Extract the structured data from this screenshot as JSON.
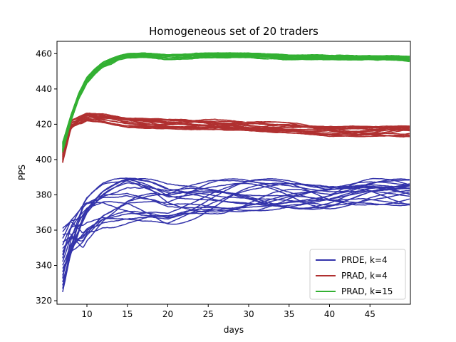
{
  "chart_data": {
    "type": "line",
    "title": "Homogeneous set of 20 traders",
    "xlabel": "days",
    "ylabel": "PPS",
    "xlim": [
      6.3,
      50
    ],
    "ylim": [
      318,
      467
    ],
    "x_ticks": [
      10,
      15,
      20,
      25,
      30,
      35,
      40,
      45
    ],
    "y_ticks": [
      320,
      340,
      360,
      380,
      400,
      420,
      440,
      460
    ],
    "grid": false,
    "legend_position": "lower-right",
    "series": [
      {
        "name": "PRDE, k=4",
        "color": "#3333aa",
        "count": 20,
        "start_range": [
          324,
          362
        ],
        "x": [
          7,
          8,
          10,
          12,
          15,
          18,
          20,
          25,
          30,
          35,
          40,
          45,
          50
        ],
        "band_center": [
          343,
          356,
          368,
          374,
          377,
          376,
          374,
          378,
          380,
          381,
          380,
          382,
          381
        ],
        "band_halfwidth": [
          18,
          17,
          15,
          14,
          14,
          13,
          13,
          12,
          10,
          9,
          8,
          8,
          8
        ]
      },
      {
        "name": "PRAD, k=4",
        "color": "#b03030",
        "count": 20,
        "start_range": [
          398,
          406
        ],
        "x": [
          7,
          8,
          10,
          12,
          15,
          20,
          25,
          30,
          35,
          40,
          45,
          50
        ],
        "band_center": [
          402,
          419,
          424,
          423,
          421,
          420,
          420,
          419,
          418,
          416,
          416,
          416
        ],
        "band_halfwidth": [
          2,
          4,
          3,
          3,
          3,
          3,
          3,
          3,
          3,
          3,
          3,
          4
        ]
      },
      {
        "name": "PRAD, k=15",
        "color": "#33b033",
        "count": 20,
        "start_range": [
          404,
          410
        ],
        "x": [
          7,
          8,
          9,
          10,
          11,
          12,
          13,
          14,
          15,
          17,
          20,
          25,
          30,
          35,
          40,
          45,
          50
        ],
        "band_center": [
          407,
          423,
          436,
          445,
          450,
          454,
          456,
          458,
          459,
          459,
          458,
          459,
          459,
          458,
          458,
          458,
          457
        ],
        "band_halfwidth": [
          2,
          2,
          2,
          2,
          2,
          2,
          2,
          1.5,
          1.5,
          1.5,
          1.5,
          1.5,
          1.5,
          1.5,
          1.5,
          1.5,
          1.5
        ]
      }
    ]
  }
}
